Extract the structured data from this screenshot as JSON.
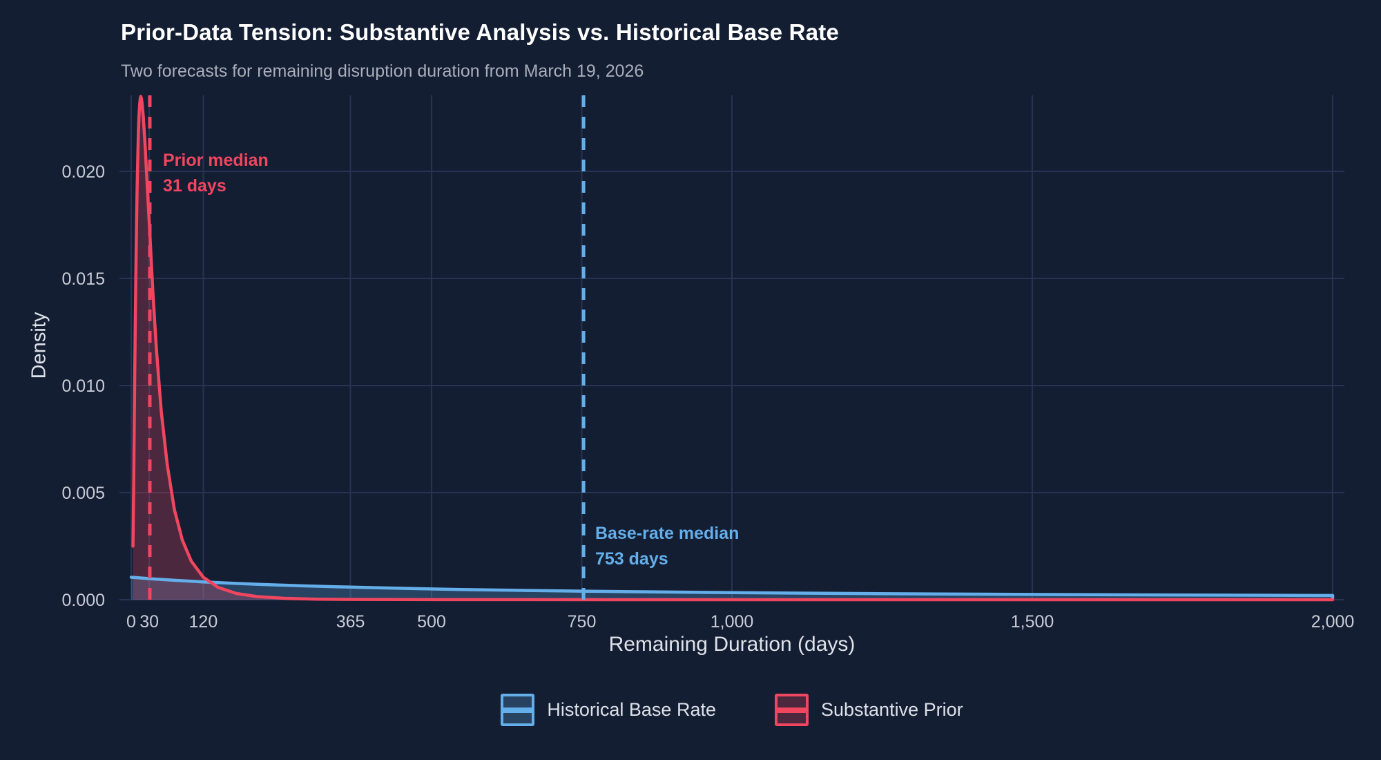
{
  "header": {
    "title": "Prior-Data Tension: Substantive Analysis vs. Historical Base Rate",
    "subtitle": "Two forecasts for remaining disruption duration from March 19, 2026"
  },
  "colors": {
    "background": "#141E33",
    "gridline": "#263352",
    "tick_label": "#C7CCD6",
    "axis_title": "#DEE2E9",
    "title": "#FFFFFF",
    "subtitle": "#A8AEBA",
    "legend_label": "#DDE1E8",
    "historical_blue": "#64AEEA",
    "prior_red": "#F0465F"
  },
  "chart_data": {
    "type": "area",
    "title": "Prior-Data Tension: Substantive Analysis vs. Historical Base Rate",
    "subtitle": "Two forecasts for remaining disruption duration from March 19, 2026",
    "xlabel": "Remaining Duration (days)",
    "ylabel": "Density",
    "xlim": [
      -20,
      2020
    ],
    "ylim": [
      0,
      0.0235
    ],
    "grid": "major",
    "legend_position": "bottom",
    "x_ticks": {
      "values": [
        0,
        30,
        120,
        365,
        500,
        750,
        1000,
        1500,
        2000
      ],
      "labels": [
        "0",
        "30",
        "120",
        "365",
        "500",
        "750",
        "1,000",
        "1,500",
        "2,000"
      ]
    },
    "y_ticks": {
      "values": [
        0,
        0.005,
        0.01,
        0.015,
        0.02
      ],
      "labels": [
        "0.000",
        "0.005",
        "0.010",
        "0.015",
        "0.020"
      ]
    },
    "series": [
      {
        "name": "Historical Base Rate",
        "color": "#64AEEA",
        "fill": "rgba(100,174,234,0.26)",
        "median_days": 753,
        "points": [
          [
            0,
            0.00105
          ],
          [
            40,
            0.000966
          ],
          [
            80,
            0.000895
          ],
          [
            120,
            0.000833
          ],
          [
            170,
            0.000767
          ],
          [
            220,
            0.000711
          ],
          [
            280,
            0.000654
          ],
          [
            340,
            0.000605
          ],
          [
            400,
            0.000563
          ],
          [
            470,
            0.00052
          ],
          [
            550,
            0.000479
          ],
          [
            640,
            0.00044
          ],
          [
            750,
            0.0004
          ],
          [
            880,
            0.000361
          ],
          [
            1020,
            0.000327
          ],
          [
            1180,
            0.000295
          ],
          [
            1350,
            0.000268
          ],
          [
            1530,
            0.000243
          ],
          [
            1720,
            0.000222
          ],
          [
            2000,
            0.000197
          ]
        ]
      },
      {
        "name": "Substantive Prior",
        "color": "#F0465F",
        "fill": "rgba(240,70,95,0.25)",
        "median_days": 31,
        "points": [
          [
            3,
            0.0025
          ],
          [
            4,
            0.005
          ],
          [
            5,
            0.0079
          ],
          [
            6,
            0.0108
          ],
          [
            7,
            0.0134
          ],
          [
            8,
            0.0158
          ],
          [
            9,
            0.0177
          ],
          [
            10,
            0.0194
          ],
          [
            11,
            0.0207
          ],
          [
            12,
            0.0218
          ],
          [
            13,
            0.0226
          ],
          [
            14,
            0.0231
          ],
          [
            15,
            0.0234
          ],
          [
            16,
            0.0235
          ],
          [
            17,
            0.0234
          ],
          [
            18,
            0.0232
          ],
          [
            19,
            0.0229
          ],
          [
            20,
            0.0226
          ],
          [
            23,
            0.0213
          ],
          [
            26,
            0.0197
          ],
          [
            31,
            0.0171
          ],
          [
            36,
            0.0144
          ],
          [
            42,
            0.0117
          ],
          [
            50,
            0.0088
          ],
          [
            60,
            0.0063
          ],
          [
            72,
            0.0042
          ],
          [
            85,
            0.0028
          ],
          [
            100,
            0.0018
          ],
          [
            120,
            0.00105
          ],
          [
            145,
            0.00057
          ],
          [
            175,
            0.00029
          ],
          [
            210,
            0.000145
          ],
          [
            255,
            6.5e-05
          ],
          [
            310,
            2.7e-05
          ],
          [
            365,
            1.4e-05
          ],
          [
            450,
            6e-06
          ],
          [
            600,
            2e-06
          ],
          [
            800,
            1e-06
          ],
          [
            1200,
            0
          ],
          [
            1600,
            0
          ],
          [
            2000,
            0
          ]
        ]
      }
    ],
    "annotations": [
      {
        "line1": "Prior median",
        "line2": "31 days",
        "x_days": 31,
        "color": "#F0465F"
      },
      {
        "line1": "Base-rate median",
        "line2": "753 days",
        "x_days": 753,
        "color": "#64AEEA"
      }
    ]
  },
  "legend": {
    "items": [
      {
        "label": "Historical Base Rate"
      },
      {
        "label": "Substantive Prior"
      }
    ]
  }
}
